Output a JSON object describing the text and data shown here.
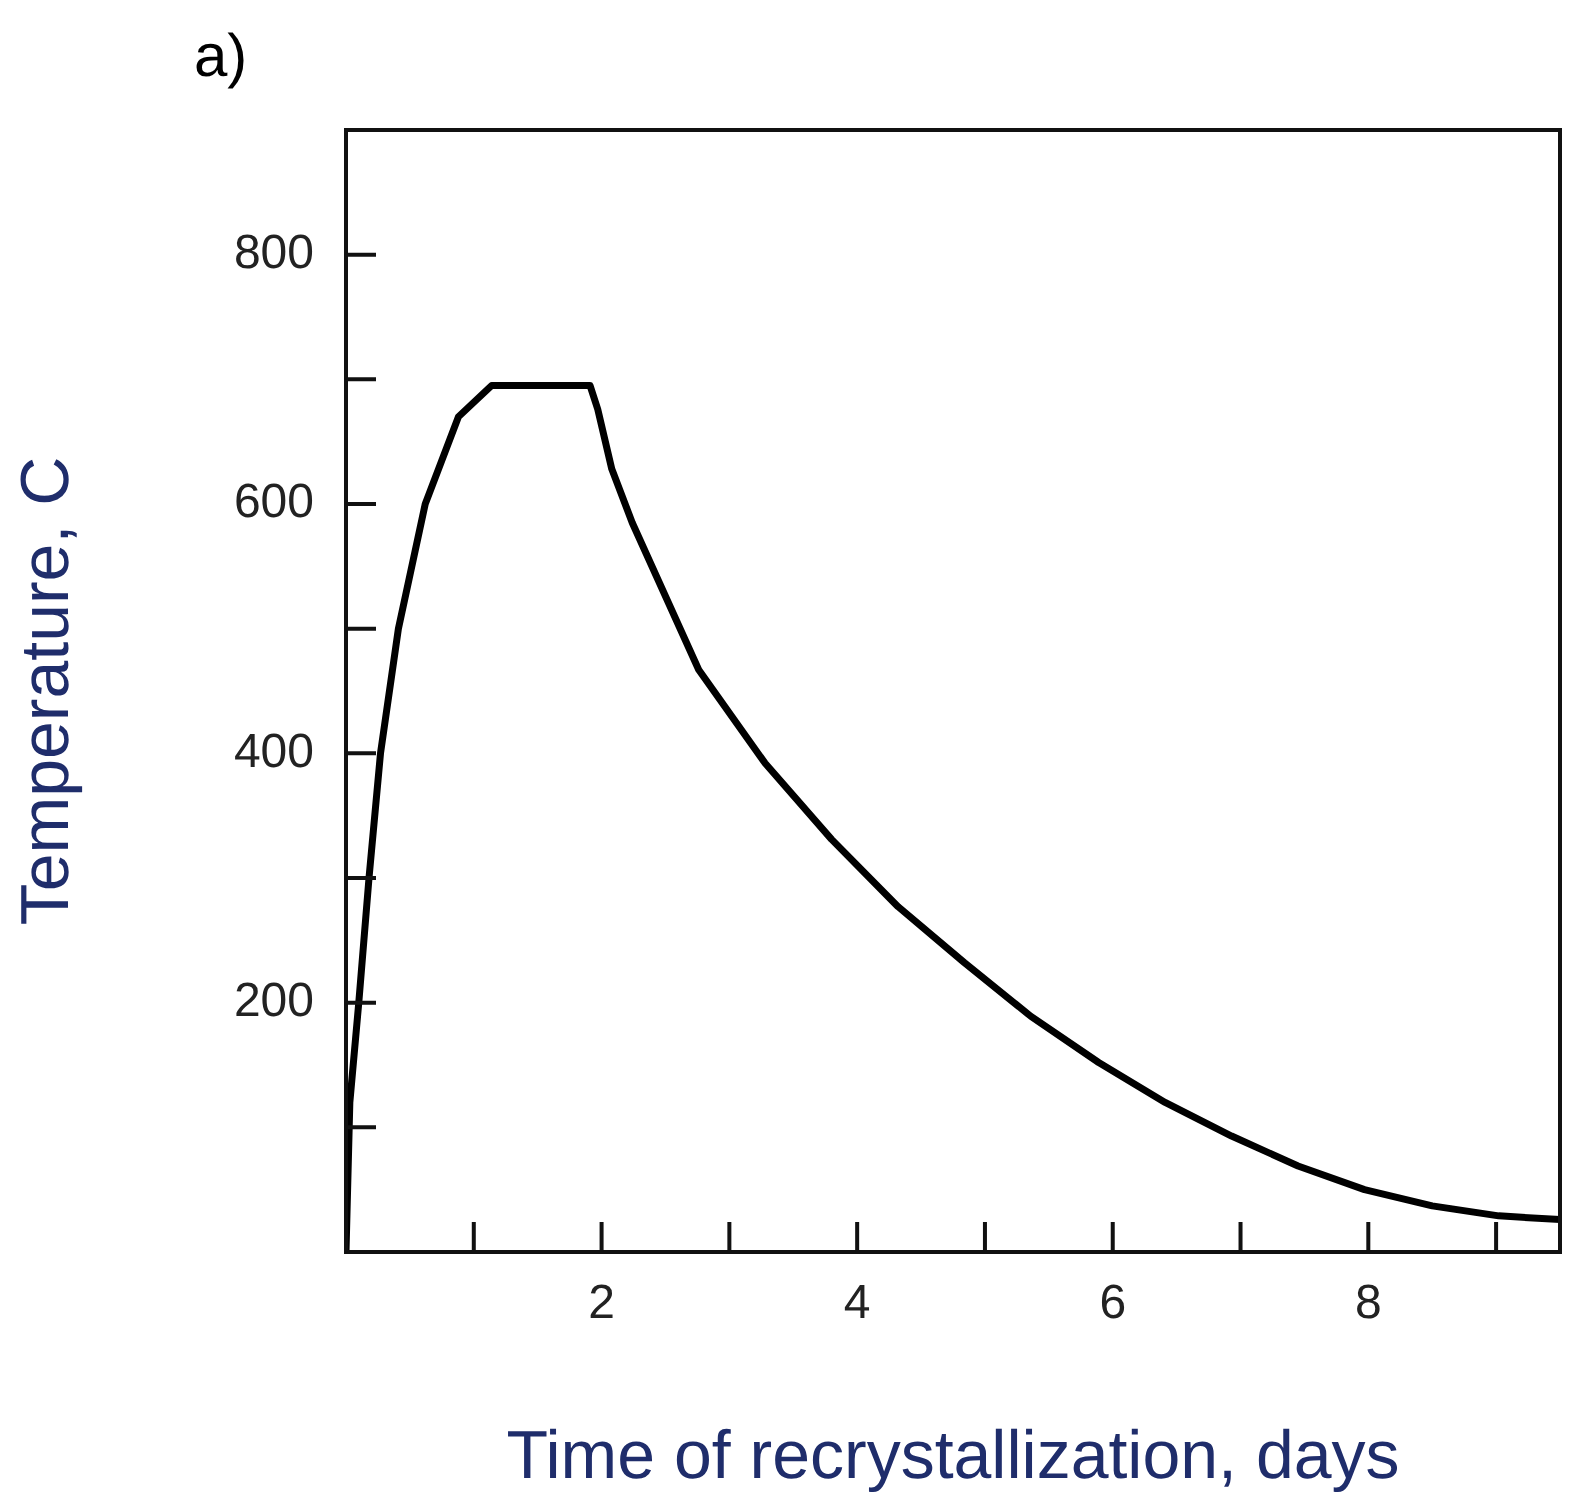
{
  "chart_data": {
    "type": "line",
    "title": "a)",
    "xlabel": "Time of recrystallization, days",
    "ylabel": "Temperature, C",
    "x": [
      0,
      0.03,
      0.1,
      0.18,
      0.27,
      0.41,
      0.62,
      0.88,
      1.14,
      1.91,
      1.97,
      2.08,
      2.24,
      2.76,
      3.28,
      3.8,
      4.32,
      4.84,
      5.36,
      5.89,
      6.41,
      6.93,
      7.45,
      7.97,
      8.5,
      9.02,
      9.5
    ],
    "series": [
      {
        "color": "#000000",
        "values": [
          0,
          120,
          200,
          300,
          400,
          500,
          600,
          670,
          695,
          695,
          676,
          628,
          585,
          467,
          392,
          331,
          277,
          232,
          189,
          152,
          120,
          93,
          69,
          50,
          37,
          29,
          26
        ]
      }
    ],
    "xlim": [
      0,
      9.5
    ],
    "ylim": [
      0,
      900
    ],
    "xticks": [
      {
        "value": 1,
        "label": null
      },
      2,
      {
        "value": 3,
        "label": null
      },
      4,
      {
        "value": 5,
        "label": null
      },
      6,
      {
        "value": 7,
        "label": null
      },
      8,
      {
        "value": 9,
        "label": null
      }
    ],
    "yticks": [
      {
        "value": 100,
        "label": null
      },
      200,
      {
        "value": 300,
        "label": null
      },
      400,
      {
        "value": 500,
        "label": null
      },
      600,
      {
        "value": 700,
        "label": null
      },
      800
    ],
    "marker": "none",
    "line_style": "solid",
    "legend": false
  }
}
